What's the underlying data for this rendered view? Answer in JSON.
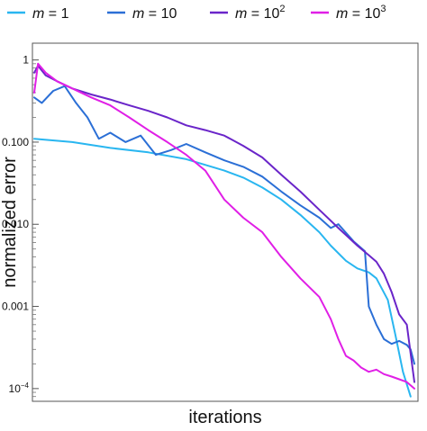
{
  "chart_data": {
    "type": "line",
    "title": "",
    "xlabel": "iterations",
    "ylabel": "normalized error",
    "yscale": "log",
    "ylim": [
      7e-05,
      1.6
    ],
    "xlim": [
      0,
      100
    ],
    "x_tick_labels_shown": false,
    "grid": false,
    "legend_position": "top",
    "y_ticks": [
      {
        "value": 1,
        "label": "1"
      },
      {
        "value": 0.1,
        "label": "0.100"
      },
      {
        "value": 0.01,
        "label": "0.010"
      },
      {
        "value": 0.001,
        "label": "0.001"
      },
      {
        "value": 0.0001,
        "label": "10",
        "sup": "−4"
      }
    ],
    "series": [
      {
        "name": "m = 1",
        "legend_var": "m",
        "legend_rest": " = 1",
        "legend_sup": "",
        "color": "#29b6f0",
        "x": [
          0,
          10,
          20,
          30,
          40,
          50,
          55,
          60,
          65,
          70,
          75,
          78,
          82,
          85,
          88,
          90,
          93,
          95,
          97,
          99
        ],
        "y": [
          0.11,
          0.1,
          0.085,
          0.075,
          0.062,
          0.045,
          0.037,
          0.028,
          0.02,
          0.013,
          0.008,
          0.0055,
          0.0036,
          0.0029,
          0.0026,
          0.0022,
          0.0012,
          0.00045,
          0.00016,
          8e-05
        ]
      },
      {
        "name": "m = 10",
        "legend_var": "m",
        "legend_rest": " = 10",
        "legend_sup": "",
        "color": "#2b6fd6",
        "x": [
          0,
          2,
          5,
          8,
          11,
          14,
          17,
          20,
          24,
          28,
          32,
          36,
          40,
          45,
          50,
          55,
          60,
          65,
          70,
          75,
          78,
          80,
          84,
          87,
          88,
          90,
          92,
          94,
          96,
          98,
          99,
          100
        ],
        "y": [
          0.35,
          0.3,
          0.42,
          0.48,
          0.3,
          0.2,
          0.11,
          0.13,
          0.1,
          0.12,
          0.07,
          0.08,
          0.095,
          0.075,
          0.06,
          0.05,
          0.038,
          0.025,
          0.017,
          0.012,
          0.009,
          0.01,
          0.0062,
          0.0047,
          0.001,
          0.0006,
          0.0004,
          0.00035,
          0.00038,
          0.00034,
          0.0003,
          0.0002
        ]
      },
      {
        "name": "m = 10^2",
        "legend_var": "m",
        "legend_rest": " = 10",
        "legend_sup": "2",
        "color": "#6a25c9",
        "x": [
          0,
          1,
          3,
          6,
          10,
          15,
          20,
          25,
          30,
          35,
          40,
          45,
          50,
          55,
          60,
          65,
          70,
          75,
          80,
          85,
          88,
          90,
          92,
          94,
          96,
          98,
          100
        ],
        "y": [
          0.7,
          0.85,
          0.65,
          0.55,
          0.45,
          0.38,
          0.33,
          0.28,
          0.24,
          0.2,
          0.16,
          0.14,
          0.12,
          0.09,
          0.065,
          0.04,
          0.025,
          0.015,
          0.009,
          0.0055,
          0.0042,
          0.0035,
          0.0025,
          0.0015,
          0.0008,
          0.0006,
          0.00012
        ]
      },
      {
        "name": "m = 10^3",
        "legend_var": "m",
        "legend_rest": " = 10",
        "legend_sup": "3",
        "color": "#e01fe6",
        "x": [
          0,
          1,
          3,
          6,
          10,
          15,
          20,
          25,
          30,
          35,
          40,
          45,
          50,
          55,
          60,
          65,
          70,
          75,
          78,
          80,
          82,
          84,
          86,
          88,
          90,
          92,
          94,
          96,
          98,
          100
        ],
        "y": [
          0.4,
          0.9,
          0.7,
          0.55,
          0.45,
          0.35,
          0.28,
          0.2,
          0.14,
          0.1,
          0.07,
          0.045,
          0.02,
          0.012,
          0.008,
          0.004,
          0.0022,
          0.0013,
          0.0007,
          0.0004,
          0.00025,
          0.00022,
          0.00018,
          0.00016,
          0.00017,
          0.00015,
          0.00014,
          0.00013,
          0.00012,
          0.0001
        ]
      }
    ]
  }
}
